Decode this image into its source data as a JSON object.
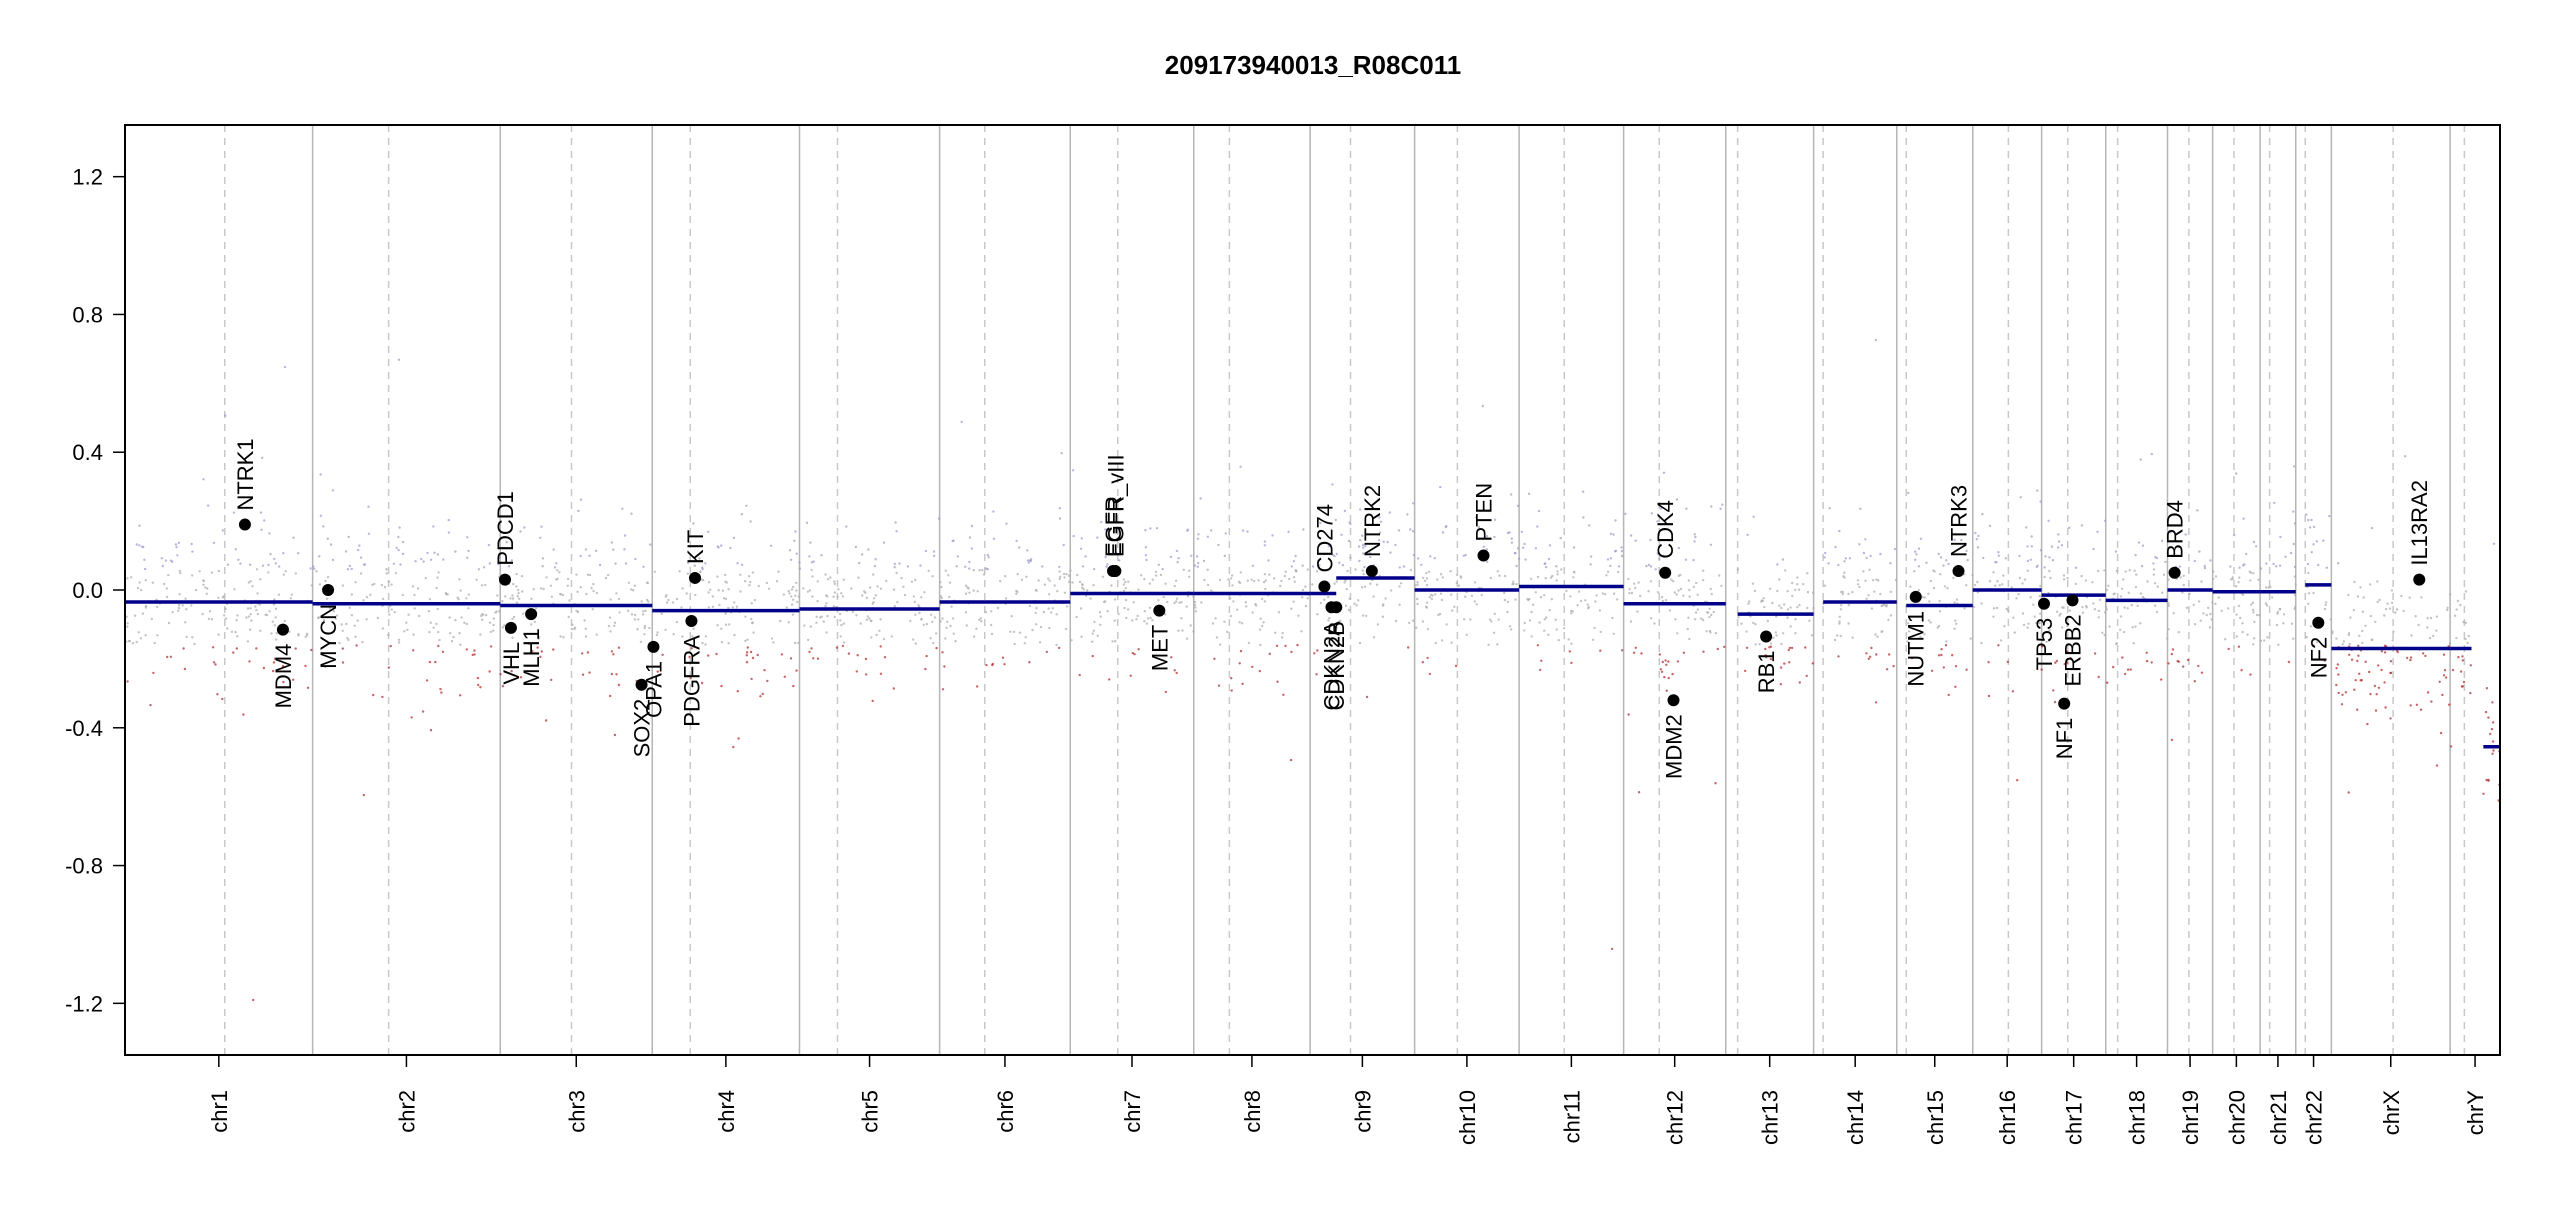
{
  "chart_data": {
    "type": "scatter",
    "title": "209173940013_R08C011",
    "xlabel": "",
    "ylabel": "",
    "ylim": [
      -1.35,
      1.35
    ],
    "y_ticks": [
      -1.2,
      -0.8,
      -0.4,
      0.0,
      0.4,
      0.8,
      1.2
    ],
    "y_tick_labels": [
      "-1.2",
      "-0.8",
      "-0.4",
      "0.0",
      "0.4",
      "0.8",
      "1.2"
    ],
    "grid": false,
    "legend": "none",
    "colors": {
      "segment": "#00008b",
      "gain_points": "#9999cc",
      "neutral_points": "#aaaaaa",
      "loss_points": "#b22222",
      "chrom_boundary": "#b5b5b5",
      "centromere": "#c8c8c8",
      "gene_marker": "#000000"
    },
    "chromosomes": [
      {
        "name": "chr1",
        "start": 0.0,
        "end": 0.079,
        "centromere": 0.042,
        "segments": [
          {
            "from": 0.0,
            "to": 0.079,
            "value": -0.035
          }
        ]
      },
      {
        "name": "chr2",
        "start": 0.079,
        "end": 0.158,
        "centromere": 0.111,
        "segments": [
          {
            "from": 0.079,
            "to": 0.158,
            "value": -0.04
          }
        ]
      },
      {
        "name": "chr3",
        "start": 0.158,
        "end": 0.222,
        "centromere": 0.188,
        "segments": [
          {
            "from": 0.158,
            "to": 0.222,
            "value": -0.045
          }
        ]
      },
      {
        "name": "chr4",
        "start": 0.222,
        "end": 0.284,
        "centromere": 0.238,
        "segments": [
          {
            "from": 0.222,
            "to": 0.284,
            "value": -0.06
          }
        ]
      },
      {
        "name": "chr5",
        "start": 0.284,
        "end": 0.343,
        "centromere": 0.3,
        "segments": [
          {
            "from": 0.284,
            "to": 0.343,
            "value": -0.055
          }
        ]
      },
      {
        "name": "chr6",
        "start": 0.343,
        "end": 0.398,
        "centromere": 0.362,
        "segments": [
          {
            "from": 0.343,
            "to": 0.398,
            "value": -0.035
          }
        ]
      },
      {
        "name": "chr7",
        "start": 0.398,
        "end": 0.45,
        "centromere": 0.418,
        "segments": [
          {
            "from": 0.398,
            "to": 0.45,
            "value": -0.01
          }
        ]
      },
      {
        "name": "chr8",
        "start": 0.45,
        "end": 0.499,
        "centromere": 0.465,
        "segments": [
          {
            "from": 0.45,
            "to": 0.499,
            "value": -0.01
          }
        ]
      },
      {
        "name": "chr9",
        "start": 0.499,
        "end": 0.543,
        "centromere": 0.516,
        "segments": [
          {
            "from": 0.499,
            "to": 0.51,
            "value": -0.01
          },
          {
            "from": 0.51,
            "to": 0.543,
            "value": 0.035
          }
        ]
      },
      {
        "name": "chr10",
        "start": 0.543,
        "end": 0.587,
        "centromere": 0.561,
        "segments": [
          {
            "from": 0.543,
            "to": 0.587,
            "value": 0.0
          }
        ]
      },
      {
        "name": "chr11",
        "start": 0.587,
        "end": 0.631,
        "centromere": 0.606,
        "segments": [
          {
            "from": 0.587,
            "to": 0.631,
            "value": 0.01
          }
        ]
      },
      {
        "name": "chr12",
        "start": 0.631,
        "end": 0.674,
        "centromere": 0.646,
        "segments": [
          {
            "from": 0.631,
            "to": 0.674,
            "value": -0.04
          }
        ]
      },
      {
        "name": "chr13",
        "start": 0.674,
        "end": 0.711,
        "centromere": 0.679,
        "segments": [
          {
            "from": 0.679,
            "to": 0.711,
            "value": -0.07
          }
        ]
      },
      {
        "name": "chr14",
        "start": 0.711,
        "end": 0.746,
        "centromere": 0.715,
        "segments": [
          {
            "from": 0.715,
            "to": 0.746,
            "value": -0.035
          }
        ]
      },
      {
        "name": "chr15",
        "start": 0.746,
        "end": 0.778,
        "centromere": 0.75,
        "segments": [
          {
            "from": 0.75,
            "to": 0.778,
            "value": -0.045
          }
        ]
      },
      {
        "name": "chr16",
        "start": 0.778,
        "end": 0.807,
        "centromere": 0.793,
        "segments": [
          {
            "from": 0.778,
            "to": 0.807,
            "value": 0.0
          }
        ]
      },
      {
        "name": "chr17",
        "start": 0.807,
        "end": 0.834,
        "centromere": 0.818,
        "segments": [
          {
            "from": 0.807,
            "to": 0.834,
            "value": -0.015
          }
        ]
      },
      {
        "name": "chr18",
        "start": 0.834,
        "end": 0.86,
        "centromere": 0.839,
        "segments": [
          {
            "from": 0.834,
            "to": 0.86,
            "value": -0.03
          }
        ]
      },
      {
        "name": "chr19",
        "start": 0.86,
        "end": 0.879,
        "centromere": 0.869,
        "segments": [
          {
            "from": 0.86,
            "to": 0.879,
            "value": 0.0
          }
        ]
      },
      {
        "name": "chr20",
        "start": 0.879,
        "end": 0.899,
        "centromere": 0.888,
        "segments": [
          {
            "from": 0.879,
            "to": 0.899,
            "value": -0.005
          }
        ]
      },
      {
        "name": "chr21",
        "start": 0.899,
        "end": 0.914,
        "centromere": 0.903,
        "segments": [
          {
            "from": 0.899,
            "to": 0.914,
            "value": -0.005
          }
        ]
      },
      {
        "name": "chr22",
        "start": 0.914,
        "end": 0.929,
        "centromere": 0.918,
        "segments": [
          {
            "from": 0.918,
            "to": 0.929,
            "value": 0.015
          }
        ]
      },
      {
        "name": "chrX",
        "start": 0.929,
        "end": 0.979,
        "centromere": 0.955,
        "segments": [
          {
            "from": 0.929,
            "to": 0.979,
            "value": -0.17
          }
        ]
      },
      {
        "name": "chrY",
        "start": 0.979,
        "end": 1.0,
        "centromere": 0.985,
        "segments": [
          {
            "from": 0.979,
            "to": 0.988,
            "value": -0.17
          },
          {
            "from": 0.993,
            "to": 1.0,
            "value": -0.455
          }
        ]
      }
    ],
    "genes": [
      {
        "name": "NTRK1",
        "x": 0.0505,
        "y": 0.19,
        "label": "above"
      },
      {
        "name": "MDM4",
        "x": 0.0665,
        "y": -0.115,
        "label": "below"
      },
      {
        "name": "MYCN",
        "x": 0.0855,
        "y": 0.0,
        "label": "below"
      },
      {
        "name": "PDCD1",
        "x": 0.16,
        "y": 0.03,
        "label": "above"
      },
      {
        "name": "VHL",
        "x": 0.1625,
        "y": -0.11,
        "label": "below"
      },
      {
        "name": "MLH1",
        "x": 0.171,
        "y": -0.07,
        "label": "below"
      },
      {
        "name": "SOX2",
        "x": 0.2175,
        "y": -0.275,
        "label": "below"
      },
      {
        "name": "OPA1",
        "x": 0.2225,
        "y": -0.165,
        "label": "below"
      },
      {
        "name": "KIT",
        "x": 0.24,
        "y": 0.035,
        "label": "above"
      },
      {
        "name": "PDGFRA",
        "x": 0.2385,
        "y": -0.09,
        "label": "below"
      },
      {
        "name": "EGFR",
        "x": 0.416,
        "y": 0.055,
        "label": "above"
      },
      {
        "name": "EGFR_vIII",
        "x": 0.417,
        "y": 0.055,
        "label": "above"
      },
      {
        "name": "MET",
        "x": 0.4355,
        "y": -0.06,
        "label": "below"
      },
      {
        "name": "CD274",
        "x": 0.505,
        "y": 0.01,
        "label": "above"
      },
      {
        "name": "CDKN2A",
        "x": 0.508,
        "y": -0.05,
        "label": "below"
      },
      {
        "name": "CDKN2B",
        "x": 0.51,
        "y": -0.05,
        "label": "below"
      },
      {
        "name": "NTRK2",
        "x": 0.525,
        "y": 0.055,
        "label": "above"
      },
      {
        "name": "PTEN",
        "x": 0.572,
        "y": 0.1,
        "label": "above"
      },
      {
        "name": "CDK4",
        "x": 0.6485,
        "y": 0.05,
        "label": "above"
      },
      {
        "name": "MDM2",
        "x": 0.652,
        "y": -0.32,
        "label": "below"
      },
      {
        "name": "RB1",
        "x": 0.691,
        "y": -0.135,
        "label": "below"
      },
      {
        "name": "NUTM1",
        "x": 0.754,
        "y": -0.02,
        "label": "below"
      },
      {
        "name": "NTRK3",
        "x": 0.772,
        "y": 0.055,
        "label": "above"
      },
      {
        "name": "TP53",
        "x": 0.808,
        "y": -0.04,
        "label": "below"
      },
      {
        "name": "NF1",
        "x": 0.8165,
        "y": -0.33,
        "label": "below"
      },
      {
        "name": "ERBB2",
        "x": 0.82,
        "y": -0.03,
        "label": "below"
      },
      {
        "name": "BRD4",
        "x": 0.863,
        "y": 0.05,
        "label": "above"
      },
      {
        "name": "NF2",
        "x": 0.9235,
        "y": -0.095,
        "label": "below"
      },
      {
        "name": "IL13RA2",
        "x": 0.966,
        "y": 0.03,
        "label": "above"
      }
    ]
  }
}
